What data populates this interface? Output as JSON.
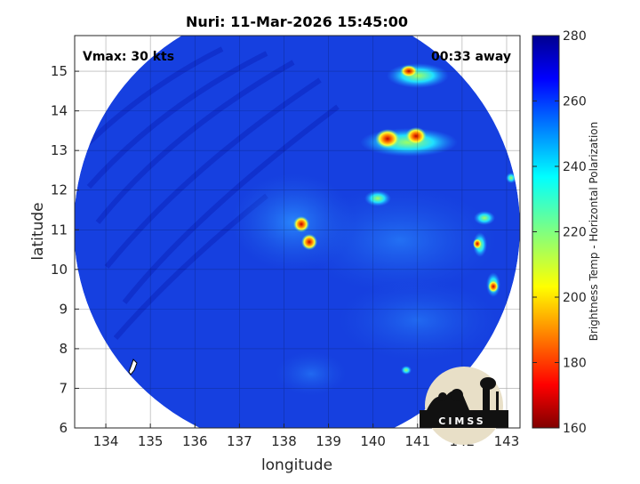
{
  "title": "Nuri: 11-Mar-2026 15:45:00",
  "vmax_label": "Vmax: 30 kts",
  "away_label": "00:33 away",
  "map": {
    "xlabel": "longitude",
    "ylabel": "latitude",
    "xlim": [
      133.3,
      143.3
    ],
    "ylim": [
      6,
      15.9
    ],
    "xticks": [
      "134",
      "135",
      "136",
      "137",
      "138",
      "139",
      "140",
      "141",
      "142",
      "143"
    ],
    "yticks": [
      "6",
      "7",
      "8",
      "9",
      "10",
      "11",
      "12",
      "13",
      "14",
      "15"
    ],
    "grid": true,
    "storm_center": {
      "lon": 138.4,
      "lat": 10.8
    },
    "swath": "circular scan",
    "high_cold_regions": [
      {
        "lon": 138.4,
        "lat": 11.1,
        "label": "convective core"
      },
      {
        "lon": 138.5,
        "lat": 10.7,
        "label": "convective core"
      },
      {
        "lon": 140.7,
        "lat": 13.3,
        "label": "cold cloud band"
      },
      {
        "lon": 141.3,
        "lat": 15.0,
        "label": "cold cloud band"
      },
      {
        "lon": 142.8,
        "lat": 9.6,
        "label": "cold cloud"
      },
      {
        "lon": 142.5,
        "lat": 10.6,
        "label": "cold cloud"
      }
    ]
  },
  "colorbar": {
    "label": "Brightness Temp - Horizontal Polarization",
    "ticks": [
      "280",
      "260",
      "240",
      "220",
      "200",
      "180",
      "160"
    ],
    "range": [
      160,
      280
    ],
    "colors": [
      "#800000",
      "#ff0000",
      "#ff8000",
      "#ffff00",
      "#80ff80",
      "#00ffff",
      "#0080ff",
      "#0000ff",
      "#00008f"
    ]
  },
  "logo": {
    "text": "CIMSS"
  }
}
